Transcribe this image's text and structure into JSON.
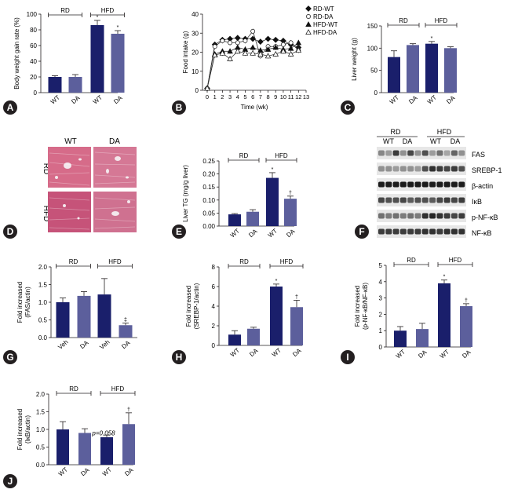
{
  "colors": {
    "wt": "#1a1f6b",
    "da": "#5c5f9c",
    "axis": "#231f20",
    "tissue": "#d36a86"
  },
  "chart_data": [
    {
      "id": "A",
      "type": "bar",
      "ylabel": "Body weight gain rate (%)",
      "ylim": [
        0,
        100
      ],
      "yticks": [
        0,
        20,
        40,
        60,
        80,
        100
      ],
      "categories": [
        "WT",
        "DA",
        "WT",
        "DA"
      ],
      "values": [
        20,
        20,
        86,
        75
      ],
      "errors": [
        1.5,
        3,
        6,
        4
      ],
      "marks": [
        "",
        "",
        "*",
        "*"
      ],
      "groups": [
        "RD",
        "HFD"
      ]
    },
    {
      "id": "B",
      "type": "line",
      "ylabel": "Food intake (g)",
      "xlabel": "Time (wk)",
      "ylim": [
        0,
        40
      ],
      "yticks": [
        0,
        10,
        20,
        30,
        40
      ],
      "xticks": [
        0,
        1,
        2,
        3,
        4,
        5,
        6,
        7,
        8,
        9,
        10,
        11,
        12,
        13
      ],
      "x": [
        0,
        1,
        2,
        3,
        4,
        5,
        6,
        7,
        8,
        9,
        10,
        11,
        12
      ],
      "legend_position": "top-right",
      "series": [
        {
          "name": "RD-WT",
          "values": [
            1,
            24,
            26.5,
            27,
            27.5,
            27,
            27,
            25.5,
            27,
            26.5,
            26,
            24,
            22.5
          ]
        },
        {
          "name": "RD-DA",
          "values": [
            1,
            23,
            26,
            25,
            25,
            26,
            31,
            18,
            23,
            23,
            24,
            25,
            21
          ]
        },
        {
          "name": "HFD-WT",
          "values": [
            1,
            19,
            20.5,
            20.5,
            22.5,
            21.5,
            22.5,
            21,
            21.5,
            22.5,
            21.5,
            22,
            25
          ]
        },
        {
          "name": "HFD-DA",
          "values": [
            1,
            18.5,
            19.5,
            16.5,
            20.5,
            19.5,
            19.5,
            19,
            18,
            19,
            20.5,
            19,
            21
          ]
        }
      ]
    },
    {
      "id": "C",
      "type": "bar",
      "ylabel": "Liver weight (g)",
      "ylim": [
        0,
        150
      ],
      "yticks": [
        0,
        50,
        100,
        150
      ],
      "categories": [
        "WT",
        "DA",
        "WT",
        "DA"
      ],
      "values": [
        80,
        107,
        110,
        100
      ],
      "errors": [
        14,
        3,
        5,
        3
      ],
      "marks": [
        "",
        "",
        "*",
        ""
      ],
      "groups": [
        "RD",
        "HFD"
      ]
    },
    {
      "id": "E",
      "type": "bar",
      "ylabel": "Liver TG (mg/g liver)",
      "ylim": [
        0,
        0.25
      ],
      "yticks": [
        "0.00",
        "0.05",
        "0.10",
        "0.15",
        "0.20",
        "0.25"
      ],
      "categories": [
        "WT",
        "DA",
        "WT",
        "DA"
      ],
      "values": [
        0.045,
        0.055,
        0.185,
        0.105
      ],
      "errors": [
        0.003,
        0.008,
        0.02,
        0.01
      ],
      "marks": [
        "",
        "",
        "*",
        "†"
      ],
      "groups": [
        "RD",
        "HFD"
      ]
    },
    {
      "id": "G",
      "type": "bar",
      "ylabel": "Fold increased (FAS/actin)",
      "ylim": [
        0,
        2.0
      ],
      "yticks": [
        "0.0",
        "0.5",
        "1.0",
        "1.5",
        "2.0"
      ],
      "categories": [
        "Veh",
        "DA",
        "Veh",
        "DA"
      ],
      "values": [
        1.0,
        1.18,
        1.22,
        0.35
      ],
      "errors": [
        0.12,
        0.12,
        0.45,
        0.06
      ],
      "marks": [
        "",
        "",
        "",
        "‡"
      ],
      "groups": [
        "RD",
        "HFD"
      ]
    },
    {
      "id": "H",
      "type": "bar",
      "ylabel": "Fold increased (SREBP-1/actin)",
      "ylim": [
        0,
        8
      ],
      "yticks": [
        0,
        2,
        4,
        6,
        8
      ],
      "categories": [
        "WT",
        "DA",
        "WT",
        "DA"
      ],
      "values": [
        1.1,
        1.7,
        6.0,
        3.9
      ],
      "errors": [
        0.4,
        0.15,
        0.25,
        0.7
      ],
      "marks": [
        "",
        "",
        "*",
        "†"
      ],
      "groups": [
        "RD",
        "HFD"
      ]
    },
    {
      "id": "I",
      "type": "bar",
      "ylabel": "Fold increased (p-NF-κB/NF-κB)",
      "ylim": [
        0,
        5
      ],
      "yticks": [
        0,
        1,
        2,
        3,
        4,
        5
      ],
      "categories": [
        "WT",
        "DA",
        "WT",
        "DA"
      ],
      "values": [
        1.0,
        1.1,
        3.9,
        2.5
      ],
      "errors": [
        0.25,
        0.35,
        0.2,
        0.15
      ],
      "marks": [
        "",
        "",
        "*",
        "†"
      ],
      "groups": [
        "RD",
        "HFD"
      ]
    },
    {
      "id": "J",
      "type": "bar",
      "ylabel": "Fold increased (IκB/actin)",
      "ylim": [
        0,
        2.0
      ],
      "yticks": [
        "0.0",
        "0.5",
        "1.0",
        "1.5",
        "2.0"
      ],
      "categories": [
        "WT",
        "DA",
        "WT",
        "DA"
      ],
      "values": [
        1.0,
        0.9,
        0.78,
        1.15
      ],
      "errors": [
        0.22,
        0.12,
        0.06,
        0.32
      ],
      "marks": [
        "",
        "",
        "",
        "†"
      ],
      "groups": [
        "RD",
        "HFD"
      ],
      "annotation": "p=0.058"
    }
  ],
  "histology": {
    "panel": "D",
    "columns": [
      "WT",
      "DA"
    ],
    "rows": [
      "RD",
      "HFD"
    ]
  },
  "western_blot": {
    "panel": "F",
    "groups": [
      "RD",
      "HFD"
    ],
    "lanes": [
      "WT",
      "DA",
      "WT",
      "DA"
    ],
    "bands": [
      "FAS",
      "SREBP-1",
      "β-actin",
      "IκB",
      "p-NF-κB",
      "NF-κB"
    ]
  }
}
